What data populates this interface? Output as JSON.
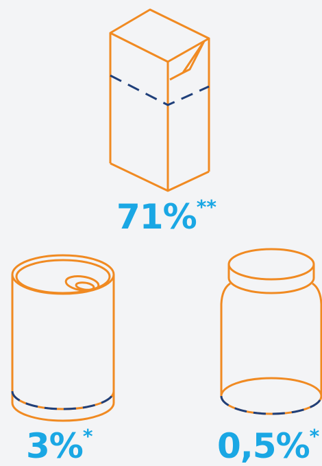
{
  "colors": {
    "outline": "#f08a22",
    "level": "#1f3f7a",
    "label": "#1aa7e4",
    "background": "#f3f4f6"
  },
  "items": [
    {
      "icon": "milk-carton-icon",
      "value": "71%",
      "mark": "**"
    },
    {
      "icon": "tin-can-icon",
      "value": "3%",
      "mark": "*"
    },
    {
      "icon": "glass-jar-icon",
      "value": "0,5%",
      "mark": "*"
    }
  ]
}
